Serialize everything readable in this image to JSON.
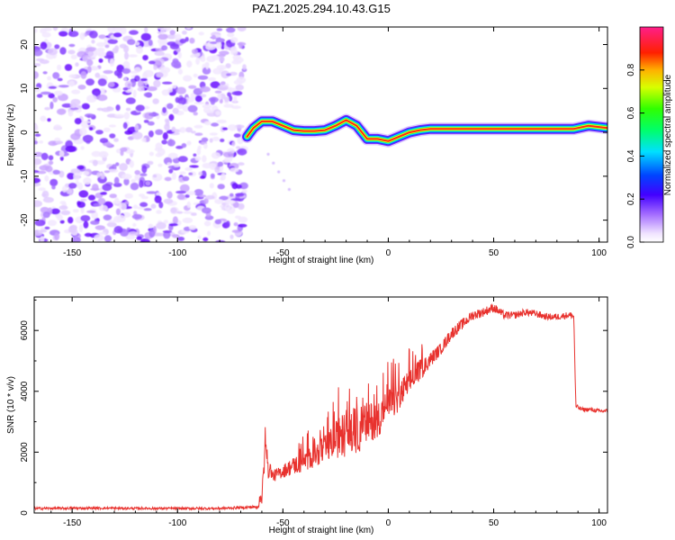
{
  "title": "PAZ1.2025.294.10.43.G15",
  "colors": {
    "snr_line": "#e8322e",
    "ridge_noise": "#7a1fff",
    "background": "#ffffff",
    "axis": "#000000"
  },
  "chart_data": [
    {
      "type": "heatmap",
      "name": "spectrogram",
      "xlabel": "Height of straight line (km)",
      "ylabel": "Frequency (Hz)",
      "xlim": [
        -168,
        104
      ],
      "ylim": [
        -25,
        24
      ],
      "xticks": [
        -150,
        -100,
        -50,
        0,
        50,
        100
      ],
      "xtick_labels": [
        "-150",
        "-100",
        "-50",
        "0",
        "50",
        "100"
      ],
      "yticks": [
        -20,
        -10,
        0,
        10,
        20
      ],
      "ytick_labels": [
        "-20",
        "-10",
        "0",
        "10",
        "20"
      ],
      "noise_region_x": [
        -168,
        -68
      ],
      "ridge": {
        "x": [
          -67,
          -64,
          -60,
          -55,
          -50,
          -45,
          -40,
          -35,
          -30,
          -25,
          -20,
          -15,
          -10,
          -5,
          0,
          5,
          10,
          15,
          20,
          30,
          50,
          70,
          88,
          95,
          104
        ],
        "freq": [
          -1,
          1,
          2.5,
          2.5,
          1.5,
          0.5,
          0.3,
          0.3,
          0.5,
          1.5,
          2.8,
          1.5,
          -1.5,
          -1.5,
          -2,
          -1,
          0,
          0.5,
          0.8,
          0.8,
          0.8,
          0.8,
          0.8,
          1.5,
          1.0
        ]
      },
      "colorbar": {
        "label": "Normalized spectral amplitude",
        "range": [
          0,
          1
        ],
        "ticks": [
          0.0,
          0.2,
          0.4,
          0.6,
          0.8
        ],
        "tick_labels": [
          "0.0",
          "0.2",
          "0.4",
          "0.6",
          "0.8"
        ]
      }
    },
    {
      "type": "line",
      "name": "snr",
      "xlabel": "Height of straight line (km)",
      "ylabel": "SNR (10 * v/v)",
      "xlim": [
        -168,
        104
      ],
      "ylim": [
        0,
        7100
      ],
      "xticks": [
        -150,
        -100,
        -50,
        0,
        50,
        100
      ],
      "xtick_labels": [
        "-150",
        "-100",
        "-50",
        "0",
        "50",
        "100"
      ],
      "yticks": [
        0,
        2000,
        4000,
        6000
      ],
      "ytick_labels": [
        "0",
        "2000",
        "4000",
        "6000"
      ],
      "series": [
        {
          "name": "SNR",
          "x": [
            -168,
            -140,
            -110,
            -80,
            -62,
            -60,
            -59,
            -58,
            -57,
            -56,
            -55,
            -52,
            -48,
            -45,
            -40,
            -35,
            -30,
            -25,
            -20,
            -15,
            -10,
            -5,
            0,
            5,
            10,
            15,
            20,
            25,
            30,
            35,
            40,
            45,
            50,
            55,
            60,
            65,
            70,
            75,
            80,
            85,
            87,
            88,
            89,
            92,
            96,
            100,
            104
          ],
          "values": [
            150,
            160,
            150,
            150,
            200,
            600,
            1500,
            2400,
            1300,
            1500,
            1200,
            1300,
            1450,
            1550,
            1700,
            1900,
            2100,
            2400,
            2650,
            2700,
            2950,
            3100,
            3500,
            3800,
            4300,
            4700,
            5050,
            5400,
            5900,
            6200,
            6500,
            6600,
            6750,
            6500,
            6500,
            6600,
            6550,
            6450,
            6450,
            6500,
            6500,
            6450,
            3500,
            3400,
            3400,
            3350,
            3350
          ],
          "noise_amplitude": [
            40,
            40,
            40,
            40,
            50,
            300,
            400,
            300,
            250,
            200,
            200,
            200,
            250,
            300,
            350,
            400,
            450,
            600,
            800,
            800,
            700,
            600,
            600,
            500,
            450,
            350,
            250,
            200,
            200,
            180,
            160,
            150,
            150,
            130,
            120,
            120,
            120,
            110,
            110,
            110,
            110,
            100,
            80,
            70,
            70,
            70,
            70
          ]
        }
      ]
    }
  ]
}
